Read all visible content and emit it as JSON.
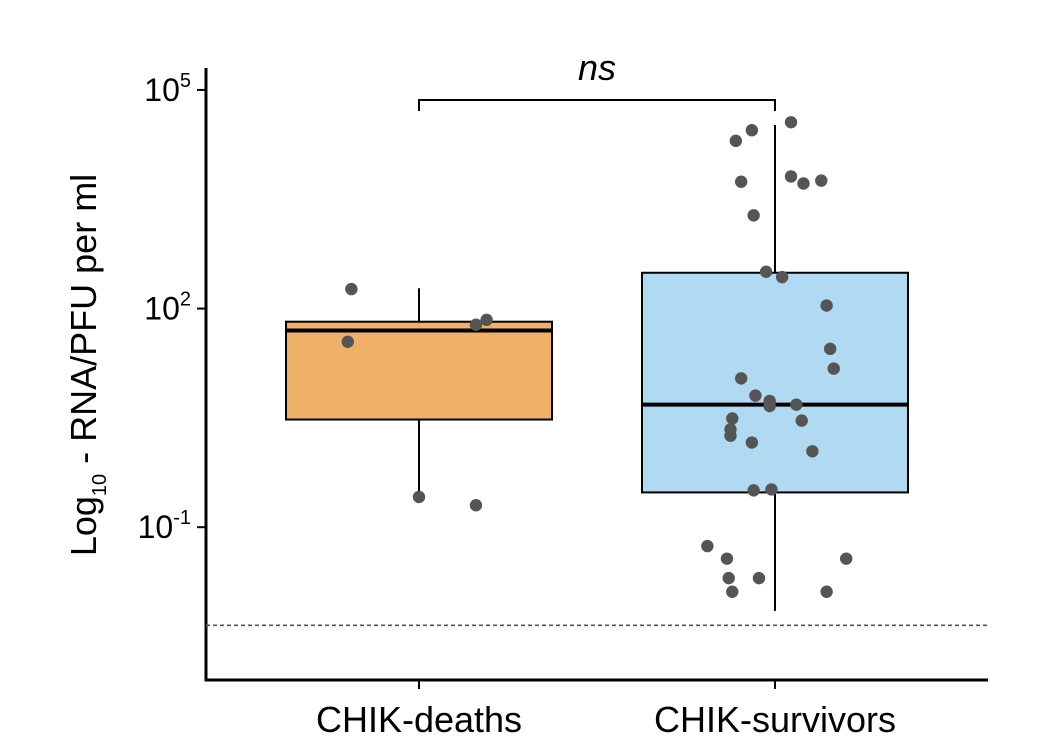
{
  "chart_data": {
    "type": "box",
    "y_scale": "log10",
    "ylabel": {
      "main": "Log",
      "subscript": "10",
      "rest": " - RNA/PFU per ml"
    },
    "ylim": [
      0.0008,
      200000
    ],
    "y_ticks": [
      {
        "value": 0.1,
        "base": "10",
        "exponent": "-1"
      },
      {
        "value": 100,
        "base": "10",
        "exponent": "2"
      },
      {
        "value": 100000,
        "base": "10",
        "exponent": "5"
      }
    ],
    "categories": [
      "CHIK-deaths",
      "CHIK-survivors"
    ],
    "detection_limit": 0.0045,
    "significance": {
      "label": "ns",
      "between": [
        "CHIK-deaths",
        "CHIK-survivors"
      ]
    },
    "groups": [
      {
        "name": "CHIK-deaths",
        "color": "#EFB068",
        "whisker_low": 0.25,
        "q1": 3.0,
        "median": 50,
        "q3": 66,
        "whisker_high": 190,
        "points": [
          {
            "x_offset": -0.38,
            "y": 185
          },
          {
            "x_offset": -0.4,
            "y": 35
          },
          {
            "x_offset": 0.0,
            "y": 0.26
          },
          {
            "x_offset": 0.32,
            "y": 0.2
          },
          {
            "x_offset": 0.32,
            "y": 60
          },
          {
            "x_offset": 0.38,
            "y": 70
          }
        ]
      },
      {
        "name": "CHIK-survivors",
        "color": "#B0DAF1",
        "whisker_low": 0.0071,
        "q1": 0.3,
        "median": 4.8,
        "q3": 310,
        "whisker_high": 33000,
        "points": [
          {
            "x_offset": 0.09,
            "y": 36000
          },
          {
            "x_offset": -0.13,
            "y": 28000
          },
          {
            "x_offset": -0.22,
            "y": 20000
          },
          {
            "x_offset": 0.09,
            "y": 6500
          },
          {
            "x_offset": 0.26,
            "y": 5700
          },
          {
            "x_offset": 0.16,
            "y": 5200
          },
          {
            "x_offset": -0.19,
            "y": 5500
          },
          {
            "x_offset": -0.12,
            "y": 1900
          },
          {
            "x_offset": -0.05,
            "y": 320
          },
          {
            "x_offset": 0.04,
            "y": 270
          },
          {
            "x_offset": 0.29,
            "y": 110
          },
          {
            "x_offset": 0.31,
            "y": 28
          },
          {
            "x_offset": 0.33,
            "y": 15
          },
          {
            "x_offset": -0.19,
            "y": 11
          },
          {
            "x_offset": -0.11,
            "y": 6.4
          },
          {
            "x_offset": -0.03,
            "y": 5.4
          },
          {
            "x_offset": -0.03,
            "y": 4.6
          },
          {
            "x_offset": 0.12,
            "y": 4.8
          },
          {
            "x_offset": -0.24,
            "y": 3.1
          },
          {
            "x_offset": 0.15,
            "y": 2.9
          },
          {
            "x_offset": -0.25,
            "y": 2.2
          },
          {
            "x_offset": -0.25,
            "y": 1.8
          },
          {
            "x_offset": -0.13,
            "y": 1.45
          },
          {
            "x_offset": 0.21,
            "y": 1.1
          },
          {
            "x_offset": -0.02,
            "y": 0.33
          },
          {
            "x_offset": -0.12,
            "y": 0.32
          },
          {
            "x_offset": -0.38,
            "y": 0.055
          },
          {
            "x_offset": -0.27,
            "y": 0.037
          },
          {
            "x_offset": 0.4,
            "y": 0.037
          },
          {
            "x_offset": -0.26,
            "y": 0.02
          },
          {
            "x_offset": -0.09,
            "y": 0.02
          },
          {
            "x_offset": -0.24,
            "y": 0.013
          },
          {
            "x_offset": 0.29,
            "y": 0.013
          }
        ]
      }
    ],
    "colors": {
      "point": "#555555",
      "axis": "#000000",
      "detection_line": "#555555"
    },
    "grid": false,
    "legend": "none"
  }
}
